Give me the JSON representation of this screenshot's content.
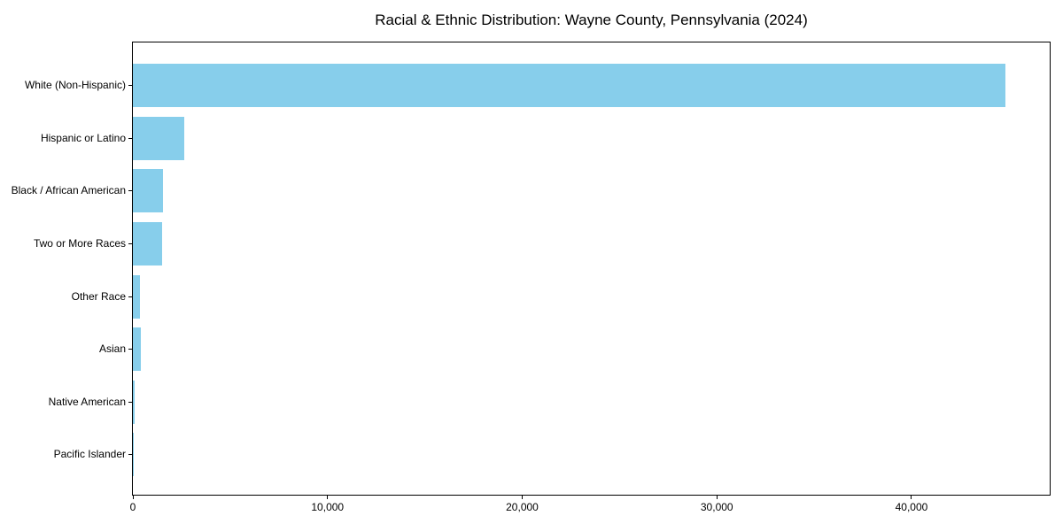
{
  "title": "Racial & Ethnic Distribution: Wayne County, Pennsylvania (2024)",
  "colors": {
    "bar": "#87CEEB",
    "axis": "#000000",
    "text": "#000000",
    "background": "#ffffff"
  },
  "chart_data": {
    "type": "bar",
    "orientation": "horizontal",
    "title": "Racial & Ethnic Distribution: Wayne County, Pennsylvania (2024)",
    "xlabel": "",
    "ylabel": "",
    "categories": [
      "White (Non-Hispanic)",
      "Hispanic or Latino",
      "Black / African American",
      "Two or More Races",
      "Other Race",
      "Asian",
      "Native American",
      "Pacific Islander"
    ],
    "values": [
      44840,
      2620,
      1530,
      1480,
      370,
      420,
      80,
      15
    ],
    "xlim": [
      0,
      47100
    ],
    "xticks": [
      0,
      10000,
      20000,
      30000,
      40000
    ],
    "xtick_labels": [
      "0",
      "10,000",
      "20,000",
      "30,000",
      "40,000"
    ],
    "grid": false,
    "legend": null,
    "bar_color": "#87CEEB"
  }
}
